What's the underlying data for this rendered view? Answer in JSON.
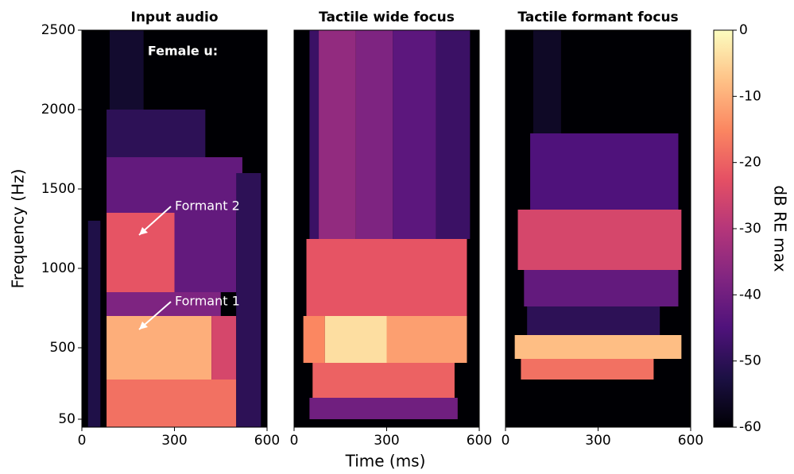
{
  "chart_data": [
    {
      "type": "heatmap",
      "title": "Input audio",
      "xlim": [
        0,
        600
      ],
      "xticks": [
        0,
        300,
        600
      ],
      "ylim": [
        0,
        2500
      ],
      "yticks": [
        50,
        500,
        1000,
        1500,
        2000,
        2500
      ],
      "annotations": [
        "Female u:",
        "Formant 2",
        "Formant 1"
      ],
      "cells": [
        {
          "t": [
            20,
            60
          ],
          "f": [
            0,
            1300
          ],
          "db": -52
        },
        {
          "t": [
            80,
            500
          ],
          "f": [
            0,
            300
          ],
          "db": -18
        },
        {
          "t": [
            80,
            420
          ],
          "f": [
            300,
            700
          ],
          "db": -10
        },
        {
          "t": [
            420,
            500
          ],
          "f": [
            300,
            700
          ],
          "db": -25
        },
        {
          "t": [
            80,
            450
          ],
          "f": [
            700,
            850
          ],
          "db": -38
        },
        {
          "t": [
            80,
            300
          ],
          "f": [
            850,
            1350
          ],
          "db": -22
        },
        {
          "t": [
            300,
            500
          ],
          "f": [
            850,
            1350
          ],
          "db": -42
        },
        {
          "t": [
            80,
            520
          ],
          "f": [
            1350,
            1700
          ],
          "db": -42
        },
        {
          "t": [
            500,
            580
          ],
          "f": [
            0,
            1600
          ],
          "db": -50
        },
        {
          "t": [
            80,
            400
          ],
          "f": [
            1700,
            2000
          ],
          "db": -50
        },
        {
          "t": [
            90,
            200
          ],
          "f": [
            2000,
            2500
          ],
          "db": -55
        }
      ]
    },
    {
      "type": "heatmap",
      "title": "Tactile wide focus",
      "xlim": [
        0,
        600
      ],
      "xticks": [
        0,
        300,
        600
      ],
      "ylim": [
        0,
        2500
      ],
      "cells": [
        {
          "t": [
            50,
            80
          ],
          "f": [
            1185,
            2500
          ],
          "db": -48
        },
        {
          "t": [
            80,
            200
          ],
          "f": [
            1185,
            2500
          ],
          "db": -35
        },
        {
          "t": [
            200,
            320
          ],
          "f": [
            1185,
            2500
          ],
          "db": -38
        },
        {
          "t": [
            320,
            460
          ],
          "f": [
            1185,
            2500
          ],
          "db": -43
        },
        {
          "t": [
            460,
            570
          ],
          "f": [
            1185,
            2500
          ],
          "db": -48
        },
        {
          "t": [
            40,
            560
          ],
          "f": [
            700,
            1185
          ],
          "db": -22
        },
        {
          "t": [
            30,
            100
          ],
          "f": [
            405,
            700
          ],
          "db": -15
        },
        {
          "t": [
            100,
            300
          ],
          "f": [
            405,
            700
          ],
          "db": -4
        },
        {
          "t": [
            300,
            560
          ],
          "f": [
            405,
            700
          ],
          "db": -12
        },
        {
          "t": [
            60,
            520
          ],
          "f": [
            185,
            405
          ],
          "db": -20
        },
        {
          "t": [
            50,
            530
          ],
          "f": [
            50,
            185
          ],
          "db": -40
        }
      ]
    },
    {
      "type": "heatmap",
      "title": "Tactile formant focus",
      "xlim": [
        0,
        600
      ],
      "xticks": [
        0,
        300,
        600
      ],
      "ylim": [
        0,
        2500
      ],
      "cells": [
        {
          "t": [
            90,
            180
          ],
          "f": [
            1850,
            2500
          ],
          "db": -56
        },
        {
          "t": [
            80,
            560
          ],
          "f": [
            1370,
            1850
          ],
          "db": -45
        },
        {
          "t": [
            40,
            570
          ],
          "f": [
            990,
            1370
          ],
          "db": -25
        },
        {
          "t": [
            60,
            560
          ],
          "f": [
            760,
            990
          ],
          "db": -42
        },
        {
          "t": [
            70,
            500
          ],
          "f": [
            580,
            760
          ],
          "db": -50
        },
        {
          "t": [
            30,
            570
          ],
          "f": [
            430,
            580
          ],
          "db": -8
        },
        {
          "t": [
            50,
            480
          ],
          "f": [
            300,
            430
          ],
          "db": -18
        }
      ]
    }
  ],
  "shared": {
    "xlabel": "Time (ms)",
    "ylabel": "Frequency (Hz)",
    "colorbar": {
      "label": "dB RE max",
      "colormap": "magma",
      "lim": [
        -60,
        0
      ],
      "ticks": [
        0,
        -10,
        -20,
        -30,
        -40,
        -50,
        -60
      ]
    }
  }
}
